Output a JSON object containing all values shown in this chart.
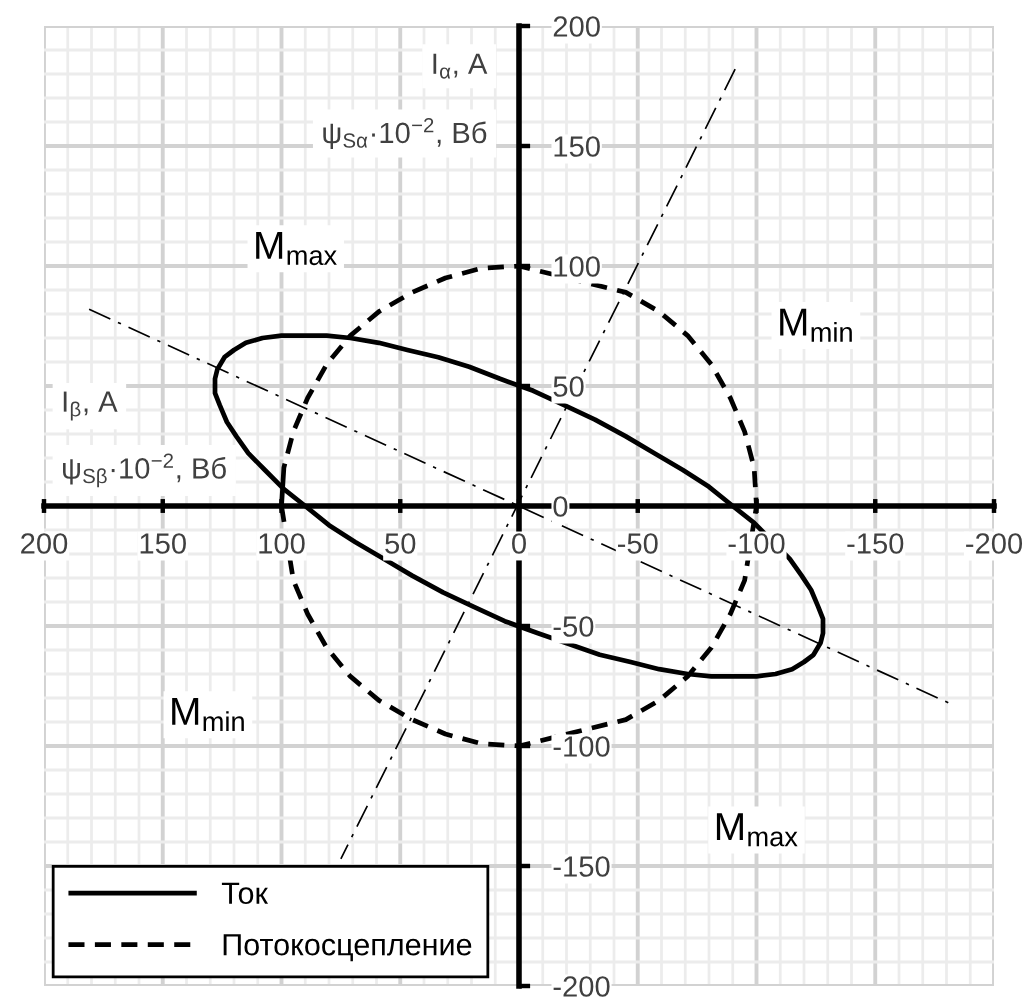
{
  "chart_data": {
    "type": "line",
    "xlabel": "I$_{β}$, А\nψ$_{Sβ}$·10$^{−2}$, Вб",
    "ylabel": "I$_{α}$, А\nψ$_{Sα}$·10$^{−2}$, Вб",
    "xlim": [
      200,
      -200
    ],
    "ylim": [
      -200,
      200
    ],
    "xticks": [
      200,
      150,
      100,
      50,
      0,
      -50,
      -100,
      -150,
      -200
    ],
    "yticks": [
      -200,
      -150,
      -100,
      -50,
      0,
      50,
      100,
      150,
      200
    ],
    "grid": true,
    "legend": "bottom left",
    "series": [
      {
        "name": "Ток",
        "color": "#000000",
        "line_style": "solid",
        "x": [
          127,
          124,
          120,
          115,
          108,
          100,
          91,
          81,
          71,
          59,
          47,
          34,
          21,
          8,
          -6,
          -19,
          -32,
          -45,
          -57,
          -69,
          -80,
          -90,
          -99,
          -114,
          -119,
          -123,
          -126,
          -128,
          -128,
          -127,
          -124,
          -120,
          -115,
          -108,
          -100,
          -91,
          -81,
          -71,
          -59,
          -47,
          -34,
          -8,
          6,
          19,
          32,
          45,
          57,
          69,
          80,
          90,
          99,
          107,
          114,
          119,
          123,
          126,
          128,
          128,
          127,
          124
        ],
        "values": [
          57,
          62,
          65,
          68,
          70,
          71,
          71,
          71,
          70,
          68,
          65,
          62,
          58,
          53,
          48,
          42,
          36,
          29,
          22,
          15,
          8,
          0,
          -7,
          -22,
          -29,
          -35,
          -42,
          -47,
          -53,
          -57,
          -62,
          -65,
          -68,
          -70,
          -71,
          -71,
          -71,
          -70,
          -68,
          -65,
          -62,
          -53,
          -48,
          -42,
          -36,
          -29,
          -22,
          -15,
          -8,
          0,
          7,
          15,
          22,
          29,
          35,
          42,
          47,
          53,
          57,
          62
        ]
      },
      {
        "name": "Потокосцепление",
        "color": "#000000",
        "line_style": "dashed",
        "x": [
          100,
          99,
          95,
          89,
          81,
          71,
          59,
          45,
          31,
          16,
          0,
          -45,
          -59,
          -71,
          -81,
          -89,
          -95,
          -99,
          -100,
          -95,
          -89,
          -81,
          -71,
          -59,
          -45,
          0,
          16,
          31,
          45,
          59,
          71,
          81,
          89,
          95,
          100,
          99
        ],
        "values": [
          0,
          16,
          31,
          45,
          59,
          71,
          81,
          89,
          95,
          99,
          100,
          89,
          81,
          71,
          59,
          45,
          31,
          16,
          0,
          -31,
          -45,
          -59,
          -71,
          -81,
          -89,
          -100,
          -99,
          -95,
          -89,
          -81,
          -71,
          -59,
          -45,
          -31,
          0,
          16
        ]
      },
      {
        "color": "#000000",
        "line_style": "dashdot",
        "x": [
          181,
          -183
        ],
        "values": [
          82,
          -83
        ]
      },
      {
        "color": "#000000",
        "line_style": "dashdot",
        "x": [
          -91,
          75
        ],
        "values": [
          182,
          -147
        ]
      }
    ],
    "annotations": [
      "M$_{max}$",
      "M$_{min}$",
      "M$_{min}$",
      "M$_{max}$"
    ]
  }
}
